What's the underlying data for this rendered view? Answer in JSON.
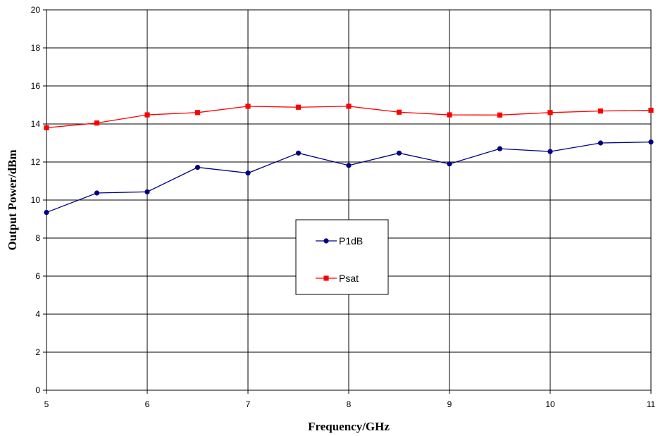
{
  "chart_data": {
    "type": "line",
    "title": "",
    "xlabel": "Frequency/GHz",
    "ylabel": "Output Power/dBm",
    "xlim": [
      5,
      11
    ],
    "ylim": [
      0,
      20
    ],
    "x_ticks": [
      5,
      6,
      7,
      8,
      9,
      10,
      11
    ],
    "y_ticks": [
      0,
      2,
      4,
      6,
      8,
      10,
      12,
      14,
      16,
      18,
      20
    ],
    "grid": true,
    "legend": "center-right",
    "series": [
      {
        "name": "P1dB",
        "color": "#000080",
        "marker": "circle",
        "x": [
          5,
          5.5,
          6,
          6.5,
          7,
          7.5,
          8,
          8.5,
          9,
          9.5,
          10,
          10.5,
          11
        ],
        "values": [
          9.35,
          10.37,
          10.43,
          11.72,
          11.42,
          12.47,
          11.82,
          12.47,
          11.9,
          12.7,
          12.55,
          13.0,
          13.05
        ]
      },
      {
        "name": "Psat",
        "color": "#ff0000",
        "marker": "square",
        "x": [
          5,
          5.5,
          6,
          6.5,
          7,
          7.5,
          8,
          8.5,
          9,
          9.5,
          10,
          10.5,
          11
        ],
        "values": [
          13.8,
          14.05,
          14.48,
          14.6,
          14.93,
          14.88,
          14.93,
          14.62,
          14.48,
          14.47,
          14.6,
          14.68,
          14.72
        ]
      }
    ]
  }
}
